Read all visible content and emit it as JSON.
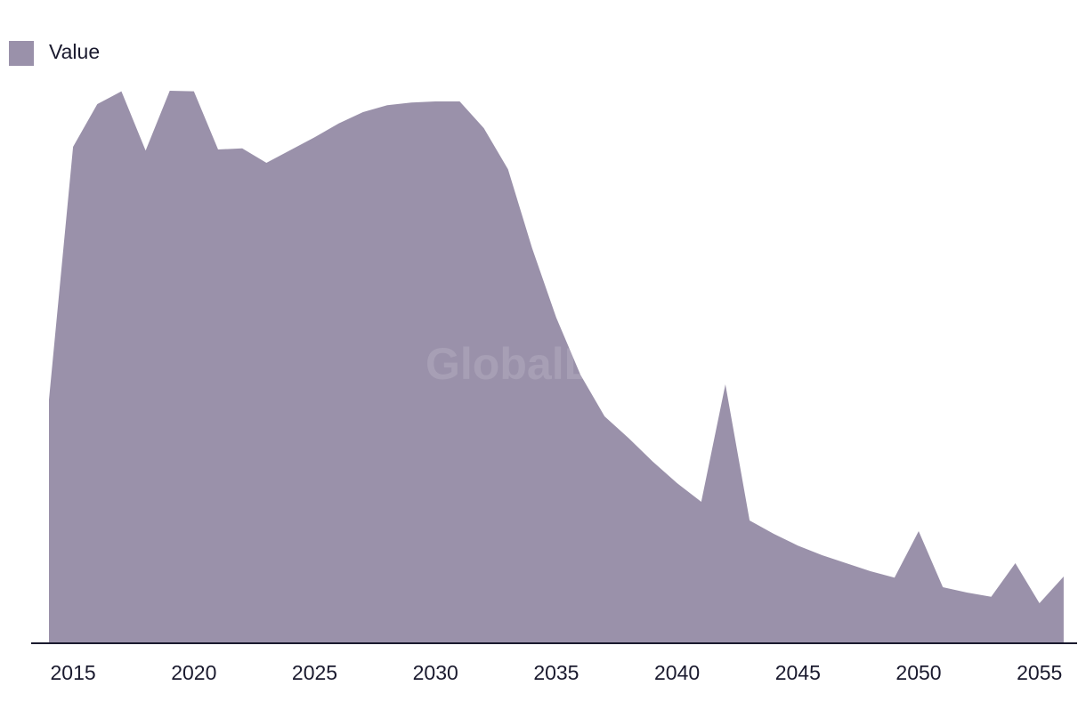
{
  "chart_data": {
    "type": "area",
    "legend": {
      "entries": [
        "Value"
      ],
      "placement": "top-left"
    },
    "series": [
      {
        "name": "Value",
        "color": "#9a91aa",
        "x": [
          2014,
          2015,
          2016,
          2017,
          2018,
          2019,
          2020,
          2021,
          2022,
          2023,
          2024,
          2025,
          2026,
          2027,
          2028,
          2029,
          2030,
          2031,
          2032,
          2033,
          2034,
          2035,
          2036,
          2037,
          2038,
          2039,
          2040,
          2041,
          2042,
          2043,
          2044,
          2045,
          2046,
          2047,
          2048,
          2049,
          2050,
          2051,
          2052,
          2053,
          2054,
          2055,
          2056
        ],
        "values": [
          45.6,
          93.0,
          101.0,
          103.4,
          92.3,
          103.5,
          103.4,
          92.5,
          92.7,
          90.0,
          92.4,
          94.8,
          97.4,
          99.5,
          100.8,
          101.3,
          101.5,
          101.5,
          96.5,
          88.8,
          74.0,
          61.0,
          50.3,
          42.5,
          38.4,
          34.0,
          30.0,
          26.5,
          48.5,
          23.0,
          20.5,
          18.3,
          16.5,
          15.0,
          13.5,
          12.3,
          21.0,
          10.5,
          9.5,
          8.7,
          15.0,
          7.5,
          12.5
        ]
      }
    ],
    "x_ticks": [
      "2015",
      "2020",
      "2025",
      "2030",
      "2035",
      "2040",
      "2045",
      "2050",
      "2055"
    ],
    "x_tick_values": [
      2015,
      2020,
      2025,
      2030,
      2035,
      2040,
      2045,
      2050,
      2055
    ],
    "xlim": [
      2013,
      2057
    ],
    "ylim": [
      0,
      110
    ],
    "grid": false,
    "title": "",
    "xlabel": "",
    "ylabel": ""
  },
  "watermark": "GlobalData",
  "colors": {
    "area": "#9a91aa",
    "axis": "#1a1a2e",
    "text": "#1a1a2e"
  }
}
